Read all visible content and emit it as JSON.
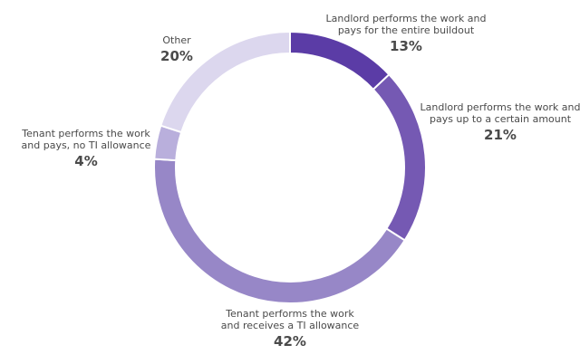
{
  "chart_data": {
    "type": "pie",
    "title": "",
    "slices": [
      {
        "label_lines": [
          "Landlord performs the work and",
          "pays for the entire buildout"
        ],
        "value": 13,
        "value_label": "13%",
        "color": "#5b3ca6"
      },
      {
        "label_lines": [
          "Landlord performs the work and",
          "pays up to a certain amount"
        ],
        "value": 21,
        "value_label": "21%",
        "color": "#7559b3"
      },
      {
        "label_lines": [
          "Tenant performs the work",
          "and receives a TI allowance"
        ],
        "value": 42,
        "value_label": "42%",
        "color": "#9787c7"
      },
      {
        "label_lines": [
          "Tenant performs the work",
          "and pays, no TI allowance"
        ],
        "value": 4,
        "value_label": "4%",
        "color": "#b9afdc"
      },
      {
        "label_lines": [
          "Other"
        ],
        "value": 20,
        "value_label": "20%",
        "color": "#dcd7ee"
      }
    ]
  }
}
